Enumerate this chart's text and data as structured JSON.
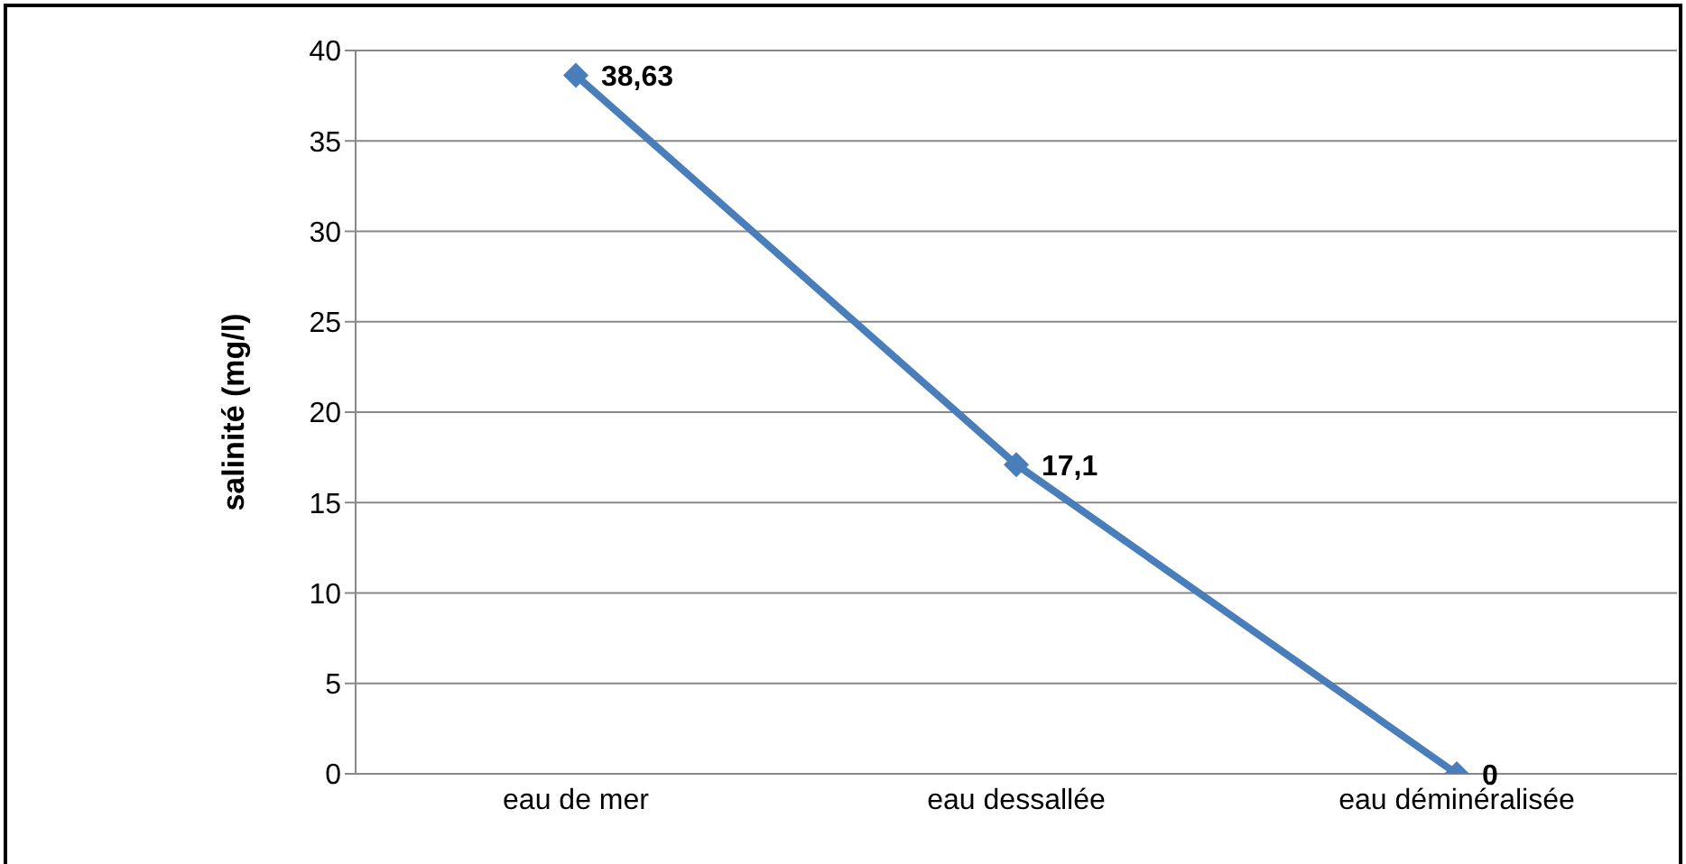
{
  "chart_data": {
    "type": "line",
    "ylabel": "salinité (mg/l)",
    "categories": [
      "eau de mer",
      "eau dessallée",
      "eau déminéralisée"
    ],
    "series": [
      {
        "color": "#4a7ebb",
        "values": [
          38.63,
          17.1,
          0
        ],
        "value_labels": [
          "38,63",
          "17,1",
          "0"
        ]
      }
    ],
    "ylim": [
      0,
      40
    ],
    "yticks": [
      0,
      5,
      10,
      15,
      20,
      25,
      30,
      35,
      40
    ],
    "grid": "y",
    "legend": false,
    "marker": "diamond",
    "line_style": "solid"
  }
}
